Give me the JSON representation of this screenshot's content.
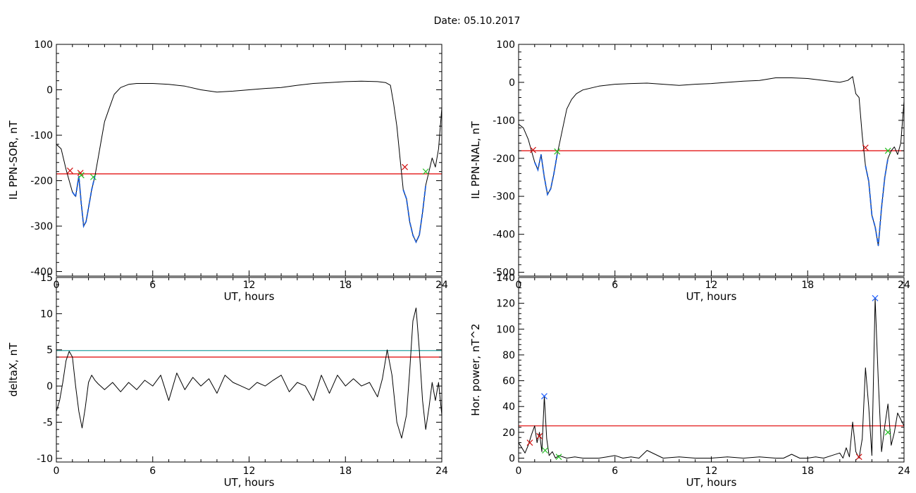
{
  "figure_title": "Date:  05.10.2017",
  "colors": {
    "trace": "#000000",
    "threshold_red": "#e00000",
    "threshold_cyan": "#2aa0a0",
    "segment_blue": "#1f5fd8",
    "marker_red": "#d01010",
    "marker_green": "#20c020",
    "marker_blue": "#2060ff"
  },
  "chart_data": [
    {
      "id": "il-sor",
      "type": "line",
      "title": "",
      "xlabel": "UT, hours",
      "ylabel": "IL PPN-SOR, nT",
      "xlim": [
        0,
        24
      ],
      "ylim": [
        -410,
        100
      ],
      "xticks": [
        0,
        6,
        12,
        18,
        24
      ],
      "yticks": [
        100,
        0,
        -100,
        -200,
        -300,
        -400
      ],
      "ytick_labels": [
        "100",
        "0",
        "-100",
        "-200",
        "-300",
        "-400"
      ],
      "series": [
        {
          "color": "#000000",
          "x": [
            0,
            0.3,
            0.6,
            0.8,
            1.0,
            1.2,
            1.4,
            1.55,
            1.7,
            1.85,
            2.0,
            2.2,
            2.4,
            2.6,
            2.8,
            3.0,
            3.3,
            3.6,
            4.0,
            4.5,
            5.0,
            6.0,
            7.0,
            8.0,
            9.0,
            10.0,
            11.0,
            12.0,
            13.0,
            14.0,
            15.0,
            16.0,
            17.0,
            18.0,
            19.0,
            20.0,
            20.5,
            20.8,
            21.0,
            21.2,
            21.4,
            21.6,
            21.8,
            22.0,
            22.2,
            22.4,
            22.6,
            22.8,
            23.0,
            23.2,
            23.4,
            23.6,
            23.8,
            24.0
          ],
          "y": [
            -120,
            -130,
            -175,
            -200,
            -225,
            -235,
            -190,
            -250,
            -300,
            -290,
            -260,
            -220,
            -190,
            -150,
            -110,
            -70,
            -40,
            -10,
            5,
            12,
            14,
            14,
            12,
            8,
            0,
            -5,
            -3,
            0,
            3,
            5,
            10,
            14,
            16,
            18,
            19,
            18,
            16,
            10,
            -30,
            -80,
            -150,
            -220,
            -240,
            -290,
            -320,
            -335,
            -320,
            -270,
            -210,
            -180,
            -150,
            -170,
            -130,
            -40
          ]
        }
      ],
      "segments": [
        {
          "color": "#1f5fd8",
          "x_from": 1.0,
          "x_to": 2.4
        },
        {
          "color": "#1f5fd8",
          "x_from": 21.6,
          "x_to": 23.0
        }
      ],
      "thresholds": [
        {
          "color": "#e00000",
          "y": -185
        }
      ],
      "markers": [
        {
          "color": "#d01010",
          "x": 0.85,
          "y": -178
        },
        {
          "color": "#d01010",
          "x": 1.5,
          "y": -183
        },
        {
          "color": "#20c020",
          "x": 1.55,
          "y": -188
        },
        {
          "color": "#20c020",
          "x": 2.3,
          "y": -192
        },
        {
          "color": "#d01010",
          "x": 21.7,
          "y": -170
        },
        {
          "color": "#20c020",
          "x": 23.0,
          "y": -180
        }
      ]
    },
    {
      "id": "il-nal",
      "type": "line",
      "title": "",
      "xlabel": "UT, hours",
      "ylabel": "IL PPN-NAL, nT",
      "xlim": [
        0,
        24
      ],
      "ylim": [
        -510,
        100
      ],
      "xticks": [
        0,
        6,
        12,
        18,
        24
      ],
      "yticks": [
        100,
        0,
        -100,
        -200,
        -300,
        -400,
        -500
      ],
      "ytick_labels": [
        "100",
        "0",
        "-100",
        "-200",
        "-300",
        "-400",
        "-500"
      ],
      "series": [
        {
          "color": "#000000",
          "x": [
            0,
            0.3,
            0.6,
            0.8,
            1.0,
            1.2,
            1.4,
            1.6,
            1.8,
            2.0,
            2.2,
            2.4,
            2.6,
            2.8,
            3.0,
            3.3,
            3.6,
            4.0,
            5.0,
            6.0,
            7.0,
            8.0,
            9.0,
            10.0,
            11.0,
            12.0,
            13.0,
            14.0,
            15.0,
            16.0,
            17.0,
            18.0,
            19.0,
            20.0,
            20.5,
            20.8,
            21.0,
            21.2,
            21.4,
            21.6,
            21.8,
            22.0,
            22.2,
            22.4,
            22.6,
            22.8,
            23.0,
            23.2,
            23.4,
            23.6,
            23.8,
            24.0
          ],
          "y": [
            -110,
            -120,
            -150,
            -180,
            -210,
            -230,
            -190,
            -250,
            -295,
            -280,
            -240,
            -190,
            -150,
            -110,
            -70,
            -45,
            -30,
            -20,
            -10,
            -5,
            -3,
            -2,
            -5,
            -8,
            -5,
            -3,
            0,
            3,
            5,
            12,
            12,
            10,
            5,
            0,
            5,
            15,
            -30,
            -40,
            -140,
            -220,
            -260,
            -350,
            -380,
            -430,
            -330,
            -250,
            -200,
            -180,
            -170,
            -190,
            -160,
            -50
          ]
        }
      ],
      "segments": [
        {
          "color": "#1f5fd8",
          "x_from": 1.0,
          "x_to": 2.4
        },
        {
          "color": "#1f5fd8",
          "x_from": 21.6,
          "x_to": 23.0
        }
      ],
      "thresholds": [
        {
          "color": "#e00000",
          "y": -180
        }
      ],
      "markers": [
        {
          "color": "#d01010",
          "x": 0.9,
          "y": -178
        },
        {
          "color": "#20c020",
          "x": 2.4,
          "y": -182
        },
        {
          "color": "#d01010",
          "x": 21.6,
          "y": -172
        },
        {
          "color": "#20c020",
          "x": 23.0,
          "y": -180
        }
      ]
    },
    {
      "id": "deltax",
      "type": "line",
      "title": "",
      "xlabel": "UT, hours",
      "ylabel": "deltaX, nT",
      "xlim": [
        0,
        24
      ],
      "ylim": [
        -10.5,
        15
      ],
      "xticks": [
        0,
        6,
        12,
        18,
        24
      ],
      "yticks": [
        15,
        10,
        5,
        0,
        -5,
        -10
      ],
      "ytick_labels": [
        "15",
        "10",
        "5",
        "0",
        "-5",
        "-10"
      ],
      "series": [
        {
          "color": "#000000",
          "x": [
            0,
            0.2,
            0.4,
            0.6,
            0.8,
            1.0,
            1.2,
            1.4,
            1.6,
            1.8,
            2.0,
            2.2,
            2.4,
            2.6,
            3.0,
            3.5,
            4.0,
            4.5,
            5.0,
            5.5,
            6.0,
            6.5,
            7.0,
            7.5,
            8.0,
            8.5,
            9.0,
            9.5,
            10.0,
            10.5,
            11.0,
            11.5,
            12.0,
            12.5,
            13.0,
            13.5,
            14.0,
            14.5,
            15.0,
            15.5,
            16.0,
            16.5,
            17.0,
            17.5,
            18.0,
            18.5,
            19.0,
            19.5,
            20.0,
            20.3,
            20.6,
            20.9,
            21.2,
            21.5,
            21.8,
            22.0,
            22.2,
            22.4,
            22.6,
            22.8,
            23.0,
            23.2,
            23.4,
            23.6,
            23.8,
            24.0
          ],
          "y": [
            -3.5,
            -2.0,
            0.5,
            3.5,
            4.8,
            4.0,
            0.0,
            -3.5,
            -5.8,
            -3.0,
            0.5,
            1.5,
            0.8,
            0.3,
            -0.5,
            0.5,
            -0.8,
            0.5,
            -0.5,
            0.8,
            0.0,
            1.5,
            -2.0,
            1.8,
            -0.5,
            1.2,
            0.0,
            1.0,
            -1.0,
            1.5,
            0.5,
            0.0,
            -0.5,
            0.5,
            0.0,
            0.8,
            1.5,
            -0.8,
            0.5,
            0.0,
            -2.0,
            1.5,
            -1.0,
            1.5,
            0.0,
            1.0,
            0.0,
            0.5,
            -1.5,
            1.0,
            5.0,
            1.5,
            -5.0,
            -7.2,
            -4.0,
            2.0,
            9.0,
            10.8,
            5.0,
            -2.0,
            -6.0,
            -3.0,
            0.5,
            -2.0,
            0.5,
            -4.0
          ]
        }
      ],
      "segments": [],
      "thresholds": [
        {
          "color": "#2aa0a0",
          "y": 4.9
        },
        {
          "color": "#e00000",
          "y": 4.0
        }
      ],
      "markers": []
    },
    {
      "id": "hor-power",
      "type": "line",
      "title": "",
      "xlabel": "UT, hours",
      "ylabel": "Hor. power, nT^2",
      "xlim": [
        0,
        24
      ],
      "ylim": [
        -3,
        140
      ],
      "xticks": [
        0,
        6,
        12,
        18,
        24
      ],
      "yticks": [
        140,
        120,
        100,
        80,
        60,
        40,
        20,
        0
      ],
      "ytick_labels": [
        "140",
        "120",
        "100",
        "80",
        "60",
        "40",
        "20",
        "0"
      ],
      "series": [
        {
          "color": "#000000",
          "x": [
            0,
            0.2,
            0.4,
            0.6,
            0.8,
            1.0,
            1.15,
            1.3,
            1.45,
            1.6,
            1.75,
            1.9,
            2.1,
            2.3,
            2.5,
            3.0,
            3.5,
            4.0,
            4.5,
            5.0,
            5.5,
            6.0,
            6.5,
            7.0,
            7.5,
            8.0,
            9.0,
            10.0,
            11.0,
            12.0,
            13.0,
            14.0,
            15.0,
            16.0,
            16.5,
            17.0,
            17.5,
            18.0,
            18.5,
            19.0,
            19.5,
            20.0,
            20.2,
            20.4,
            20.6,
            20.8,
            21.0,
            21.2,
            21.4,
            21.6,
            21.8,
            22.0,
            22.2,
            22.4,
            22.6,
            22.8,
            23.0,
            23.2,
            23.4,
            23.6,
            23.8,
            24.0
          ],
          "y": [
            12,
            8,
            4,
            10,
            18,
            25,
            12,
            20,
            5,
            48,
            15,
            2,
            5,
            0,
            2,
            0,
            1,
            0,
            0,
            0,
            1,
            2,
            0,
            1,
            0,
            6,
            0,
            1,
            0,
            0,
            1,
            0,
            1,
            0,
            0,
            3,
            0,
            0,
            1,
            0,
            2,
            4,
            0,
            8,
            1,
            28,
            5,
            0,
            15,
            70,
            40,
            2,
            124,
            60,
            5,
            25,
            42,
            10,
            20,
            35,
            30,
            25
          ]
        }
      ],
      "segments": [],
      "thresholds": [
        {
          "color": "#e00000",
          "y": 25
        }
      ],
      "markers": [
        {
          "color": "#d01010",
          "x": 0.7,
          "y": 12
        },
        {
          "color": "#d01010",
          "x": 1.3,
          "y": 17
        },
        {
          "color": "#2060ff",
          "x": 1.6,
          "y": 48
        },
        {
          "color": "#20c020",
          "x": 1.65,
          "y": 6
        },
        {
          "color": "#20c020",
          "x": 2.5,
          "y": 1
        },
        {
          "color": "#d01010",
          "x": 21.2,
          "y": 1
        },
        {
          "color": "#2060ff",
          "x": 22.2,
          "y": 124
        },
        {
          "color": "#20c020",
          "x": 23.0,
          "y": 20
        }
      ]
    }
  ]
}
